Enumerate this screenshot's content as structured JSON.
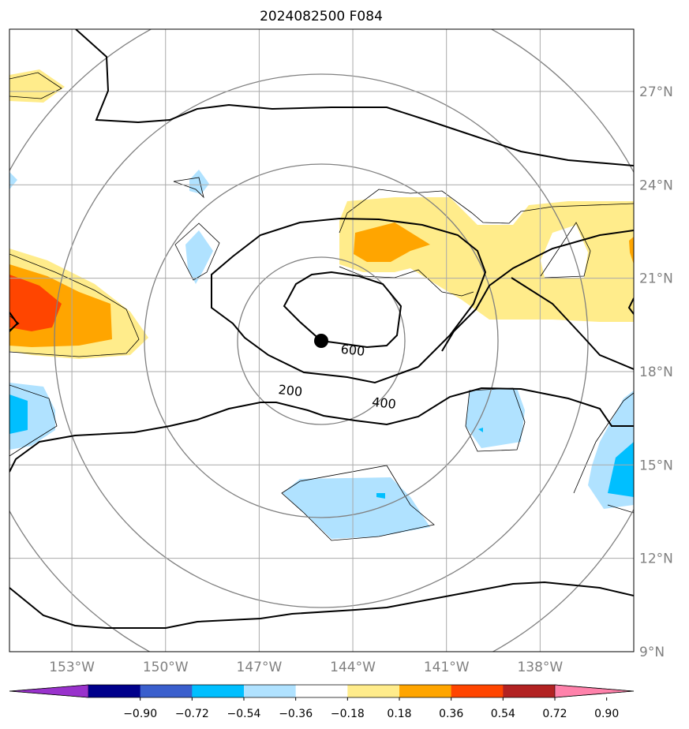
{
  "title": "2024082500 F084",
  "map": {
    "lon_range": [
      -155.0,
      -135.0
    ],
    "lat_range": [
      9.0,
      29.0
    ],
    "grid": true,
    "lon_ticks": [
      {
        "lon": -153,
        "label": "153°W"
      },
      {
        "lon": -150,
        "label": "150°W"
      },
      {
        "lon": -147,
        "label": "147°W"
      },
      {
        "lon": -144,
        "label": "144°W"
      },
      {
        "lon": -141,
        "label": "141°W"
      },
      {
        "lon": -138,
        "label": "138°W"
      }
    ],
    "lat_ticks": [
      {
        "lat": 9,
        "label": "9°N"
      },
      {
        "lat": 12,
        "label": "12°N"
      },
      {
        "lat": 15,
        "label": "15°N"
      },
      {
        "lat": 18,
        "label": "18°N"
      },
      {
        "lat": 21,
        "label": "21°N"
      },
      {
        "lat": 24,
        "label": "24°N"
      },
      {
        "lat": 27,
        "label": "27°N"
      }
    ],
    "center": {
      "lon": -145.0,
      "lat": 18.9
    },
    "contour_labels": [
      {
        "text": "600",
        "lon": -144.0,
        "lat": 18.7
      },
      {
        "text": "400",
        "lon": -143.0,
        "lat": 17.0
      },
      {
        "text": "200",
        "lon": -146.0,
        "lat": 17.4
      }
    ]
  },
  "colorbar": {
    "colors": [
      "#9932cc",
      "#00008b",
      "#3a5fcd",
      "#00bfff",
      "#b0e2ff",
      "#ffffff",
      "#ffec8b",
      "#ffa500",
      "#ff4500",
      "#b22222",
      "#ff82ab"
    ],
    "labels": [
      "−0.90",
      "−0.72",
      "−0.54",
      "−0.36",
      "−0.18",
      "0.18",
      "0.36",
      "0.54",
      "0.72",
      "0.90"
    ]
  }
}
